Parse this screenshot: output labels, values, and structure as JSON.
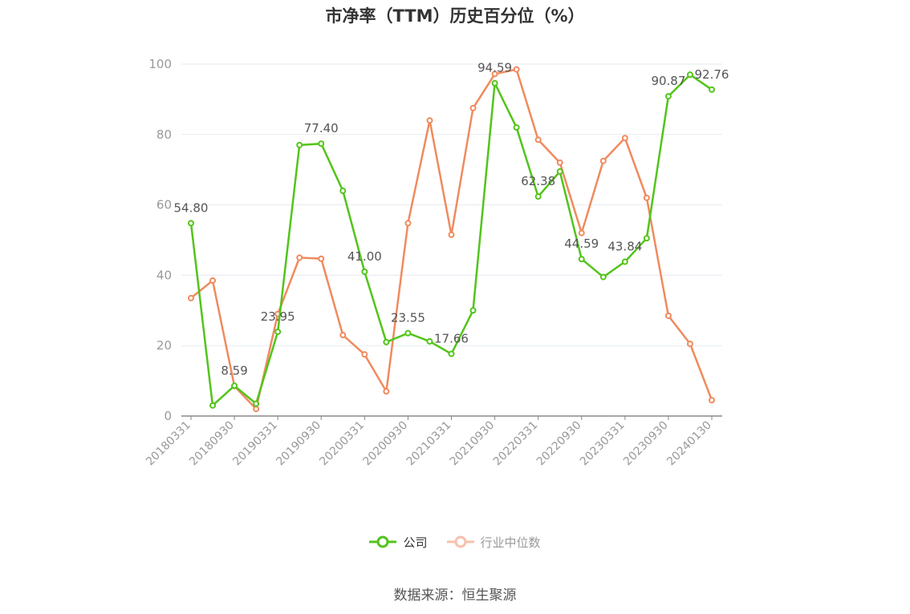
{
  "chart_data": {
    "type": "line",
    "title": "市净率（TTM）历史百分位（%）",
    "xlabel": "",
    "ylabel": "",
    "ylim": [
      0,
      100
    ],
    "yticks": [
      0,
      20,
      40,
      60,
      80,
      100
    ],
    "grid": true,
    "legend_position": "bottom",
    "x": [
      "20180331",
      "20180630",
      "20180930",
      "20181231",
      "20190331",
      "20190630",
      "20190930",
      "20191231",
      "20200331",
      "20200630",
      "20200930",
      "20201231",
      "20210331",
      "20210630",
      "20210930",
      "20211231",
      "20220331",
      "20220630",
      "20220930",
      "20221231",
      "20230331",
      "20230630",
      "20230930",
      "20231231",
      "20240130"
    ],
    "xtick_labels": [
      "20180331",
      "20180930",
      "20190331",
      "20190930",
      "20200331",
      "20200930",
      "20210331",
      "20210930",
      "20220331",
      "20220930",
      "20230331",
      "20230930",
      "20240130"
    ],
    "series": [
      {
        "name": "公司",
        "color": "#52c41a",
        "values": [
          54.8,
          3.0,
          8.59,
          3.5,
          23.95,
          77.0,
          77.4,
          64.0,
          41.0,
          21.0,
          23.55,
          21.2,
          17.66,
          30.0,
          94.59,
          82.0,
          62.38,
          69.5,
          44.59,
          39.5,
          43.84,
          50.5,
          90.87,
          97.0,
          92.76
        ],
        "labels": [
          "54.80",
          "",
          "8.59",
          "",
          "23.95",
          "",
          "77.40",
          "",
          "41.00",
          "",
          "23.55",
          "",
          "17.66",
          "",
          "94.59",
          "",
          "62.38",
          "",
          "44.59",
          "",
          "43.84",
          "",
          "90.87",
          "",
          "92.76"
        ]
      },
      {
        "name": "行业中位数",
        "color": "#f08a5d",
        "values": [
          33.5,
          38.5,
          8.5,
          2.0,
          29.0,
          45.0,
          44.7,
          23.0,
          17.5,
          7.0,
          54.8,
          84.0,
          51.5,
          87.5,
          97.2,
          98.5,
          78.5,
          72.0,
          52.0,
          72.5,
          79.0,
          62.0,
          28.5,
          20.5,
          4.5
        ]
      }
    ]
  },
  "source_text": "数据来源：恒生聚源"
}
